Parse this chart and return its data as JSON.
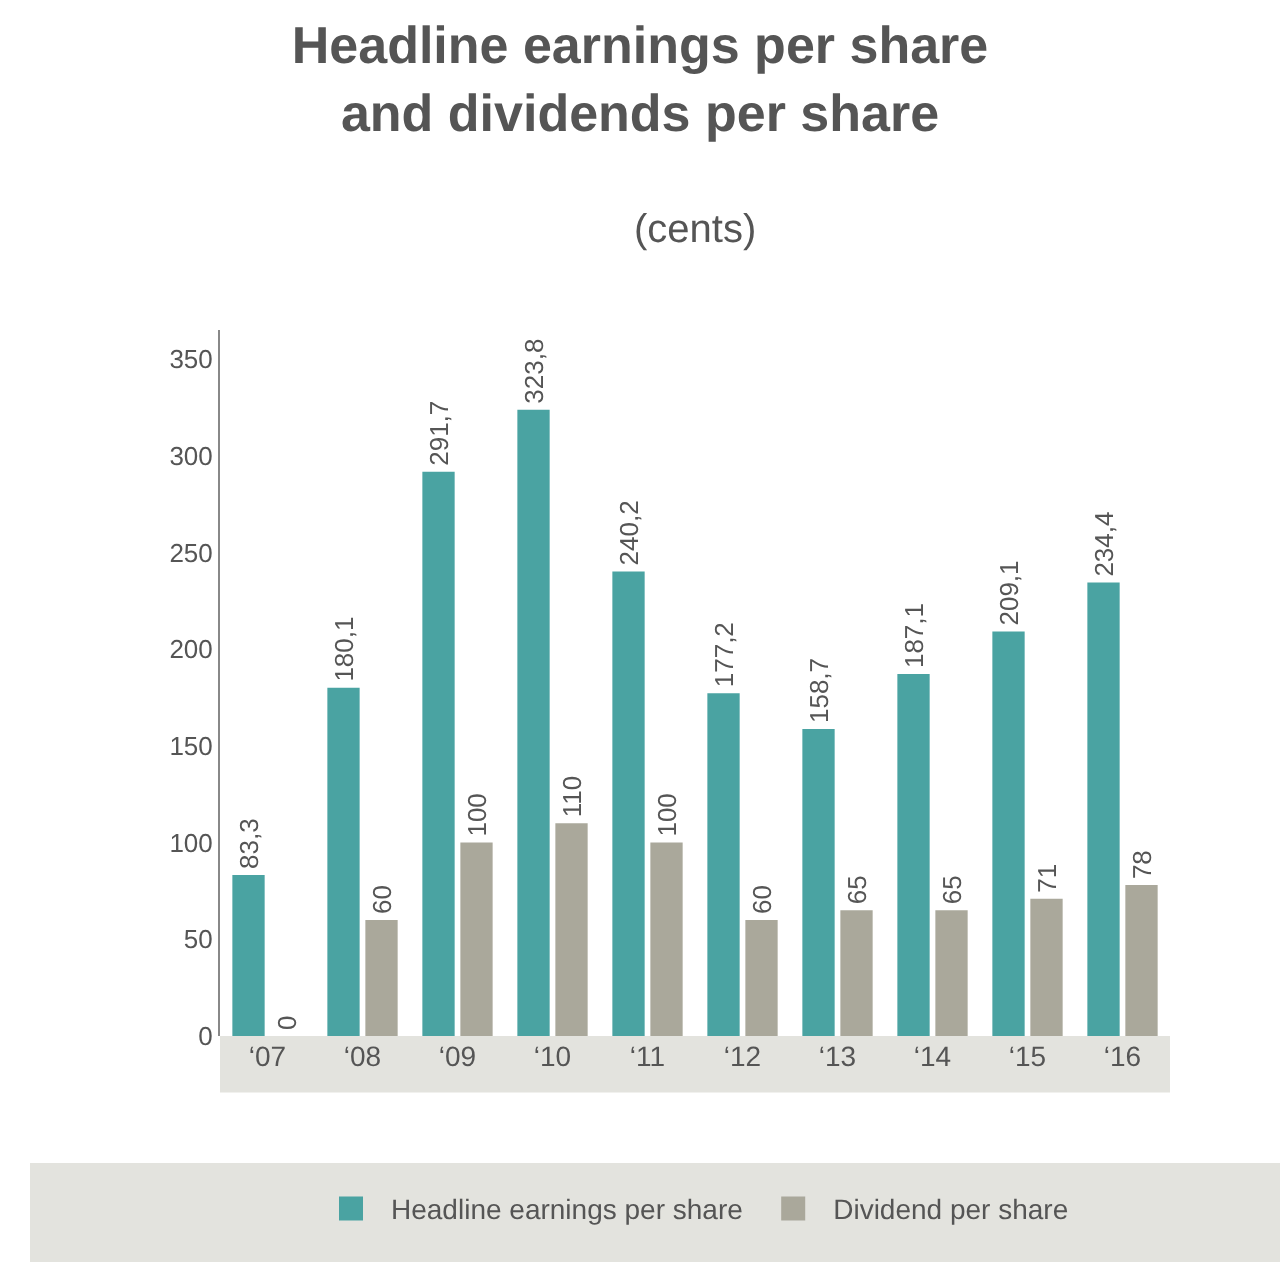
{
  "chart_data": {
    "type": "bar",
    "title": "Headline earnings per share\nand dividends per share",
    "subtitle": "(cents)",
    "categories": [
      "‘07",
      "‘08",
      "‘09",
      "‘10",
      "‘11",
      "‘12",
      "‘13",
      "‘14",
      "‘15",
      "‘16"
    ],
    "series": [
      {
        "name": "Headline earnings per share",
        "color": "#4aa3a2",
        "values": [
          83.3,
          180.1,
          291.7,
          323.8,
          240.2,
          177.2,
          158.7,
          187.1,
          209.1,
          234.4
        ],
        "value_labels": [
          "83,3",
          "180,1",
          "291,7",
          "323,8",
          "240,2",
          "177,2",
          "158,7",
          "187,1",
          "209,1",
          "234,4"
        ]
      },
      {
        "name": "Dividend per share",
        "color": "#aaa89b",
        "values": [
          0,
          60,
          100,
          110,
          100,
          60,
          65,
          65,
          71,
          78
        ],
        "value_labels": [
          "0",
          "60",
          "100",
          "110",
          "100",
          "60",
          "65",
          "65",
          "71",
          "78"
        ]
      }
    ],
    "ylim": [
      0,
      365
    ],
    "yticks": [
      0,
      50,
      100,
      150,
      200,
      250,
      300,
      350
    ],
    "grid": false,
    "legend": "bottom"
  }
}
